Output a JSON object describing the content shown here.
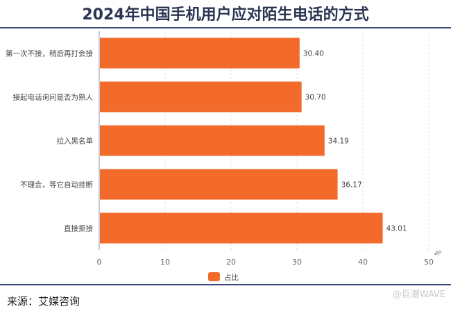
{
  "title": "2024年中国手机用户应对陌生电话的方式",
  "source": "来源：艾媒咨询",
  "watermark": "@巨潮WAVE",
  "chart_data": {
    "type": "bar",
    "orientation": "horizontal",
    "categories": [
      "第一次不接，稍后再打会接",
      "接起电话询问是否为熟人",
      "拉入黑名单",
      "不理会，等它自动挂断",
      "直接拒接"
    ],
    "series": [
      {
        "name": "占比",
        "values": [
          30.4,
          30.7,
          34.19,
          36.17,
          43.01
        ],
        "color": "#f26b2a"
      }
    ],
    "value_labels": [
      "30.40",
      "30.70",
      "34.19",
      "36.17",
      "43.01"
    ],
    "xlim": [
      0,
      50
    ],
    "xticks": [
      "0",
      "10",
      "20",
      "30",
      "40",
      "50"
    ],
    "xunit": "%",
    "grid": true,
    "legend_position": "bottom"
  }
}
